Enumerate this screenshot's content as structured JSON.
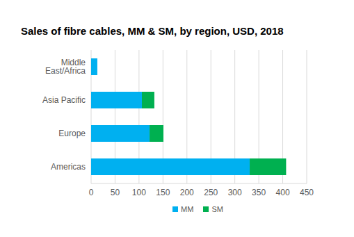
{
  "chart_data": {
    "type": "bar",
    "title": "Sales of fibre cables, MM & SM, by region, USD, 2018",
    "orientation": "horizontal",
    "stacked": true,
    "grid": true,
    "legend": "bottom",
    "categories": [
      "Middle East/Africa",
      "Asia Pacific",
      "Europe",
      "Americas"
    ],
    "series": [
      {
        "name": "MM",
        "color": "#00b0f0",
        "values": [
          13,
          106,
          122,
          331
        ]
      },
      {
        "name": "SM",
        "color": "#00b050",
        "values": [
          0,
          26,
          29,
          76
        ]
      }
    ],
    "xlim": [
      0,
      450
    ],
    "xticks": [
      0,
      50,
      100,
      150,
      200,
      250,
      300,
      350,
      400,
      450
    ]
  }
}
